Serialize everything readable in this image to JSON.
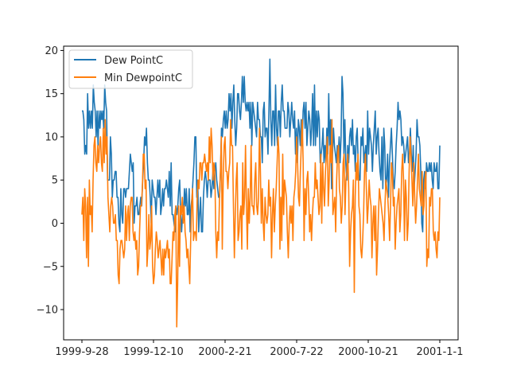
{
  "chart_data": {
    "type": "line",
    "title": "",
    "xlabel": "",
    "ylabel": "",
    "x_tick_labels": [
      "1999-9-28",
      "1999-12-10",
      "2000-2-21",
      "2000-7-22",
      "2000-10-21",
      "2001-1-1"
    ],
    "yticks": [
      -10,
      -5,
      0,
      5,
      10,
      15,
      20
    ],
    "ylim": [
      -13.5,
      20.5
    ],
    "grid": false,
    "legend_position": "top-left",
    "series": [
      {
        "name": "Dew PointC",
        "color": "#1f77b4",
        "values": [
          13,
          13,
          12,
          8,
          9,
          8,
          15,
          11,
          13,
          11,
          13,
          11,
          16,
          14,
          13,
          10,
          13,
          9,
          13,
          11,
          13,
          12,
          13,
          11,
          16,
          14,
          13,
          5,
          5,
          5,
          10,
          8,
          3,
          5,
          5,
          6,
          6,
          3,
          3,
          0,
          -1,
          4,
          1,
          0,
          4,
          4,
          3,
          4,
          4,
          4,
          6,
          8,
          7,
          6,
          7,
          0,
          2,
          2,
          3,
          1,
          1,
          2,
          3,
          2,
          5,
          7,
          10,
          9,
          11,
          7,
          5,
          5,
          3,
          0,
          5,
          4,
          3,
          3,
          1,
          3,
          5,
          3,
          5,
          1,
          2,
          4,
          2,
          4,
          4,
          5,
          4,
          3,
          6,
          2,
          7,
          1,
          1,
          0,
          -1,
          2,
          1,
          2,
          4,
          5,
          1,
          -1,
          1,
          1,
          4,
          2,
          4,
          1,
          1,
          4,
          -1,
          2,
          3,
          5,
          7,
          10,
          10,
          3,
          5,
          -1,
          1,
          3,
          -1,
          -1,
          3,
          5,
          6,
          5,
          3,
          5,
          5,
          5,
          3,
          4,
          6,
          4,
          6,
          7,
          5,
          4,
          3,
          3,
          6,
          11,
          10,
          12,
          13,
          11,
          13,
          11,
          12,
          15,
          13,
          15,
          11,
          14,
          16,
          12,
          9,
          11,
          15,
          15,
          13,
          12,
          14,
          17,
          14,
          17,
          14,
          13,
          14,
          13,
          14,
          11,
          14,
          9,
          14,
          13,
          12,
          11,
          10,
          14,
          12,
          12,
          10,
          10,
          7,
          13,
          14,
          10,
          11,
          11,
          8,
          13,
          19,
          12,
          9,
          13,
          13,
          9,
          16,
          11,
          9,
          13,
          13,
          10,
          14,
          16,
          13,
          13,
          11,
          11,
          11,
          14,
          13,
          10,
          12,
          14,
          12,
          11,
          13,
          8,
          11,
          7,
          12,
          11,
          9,
          12,
          9,
          13,
          14,
          11,
          14,
          9,
          11,
          13,
          12,
          9,
          11,
          15,
          9,
          16,
          9,
          13,
          10,
          13,
          12,
          7,
          8,
          9,
          11,
          7,
          9,
          7,
          11,
          8,
          15,
          9,
          12,
          4,
          8,
          11,
          9,
          8,
          7,
          9,
          8,
          10,
          7,
          10,
          17,
          15,
          8,
          12,
          7,
          5,
          9,
          7,
          10,
          11,
          9,
          12,
          8,
          9,
          6,
          10,
          11,
          7,
          5,
          5,
          10,
          9,
          11,
          7,
          8,
          9,
          6,
          13,
          8,
          11,
          10,
          9,
          6,
          9,
          11,
          13,
          8,
          10,
          11,
          8,
          6,
          5,
          10,
          4,
          11,
          9,
          4,
          5,
          8,
          3,
          7,
          9,
          11,
          8,
          5,
          4,
          6,
          9,
          11,
          14,
          12,
          13,
          12,
          9,
          10,
          9,
          7,
          8,
          9,
          10,
          7,
          8,
          11,
          8,
          6,
          9,
          4,
          6,
          8,
          12,
          10,
          10,
          9,
          6,
          0,
          -1,
          5,
          6,
          4,
          7,
          6,
          6,
          7,
          6,
          7,
          5,
          4,
          7,
          6,
          6,
          7,
          4,
          4,
          9
        ]
      },
      {
        "name": "Min DewpointC",
        "color": "#ff7f0e",
        "values": [
          1,
          3,
          -2,
          4,
          2,
          -4,
          3,
          -5,
          5,
          1,
          2,
          -1,
          5,
          9,
          10,
          7,
          6,
          9,
          7,
          9,
          10,
          7,
          6,
          11,
          7,
          12,
          8,
          10,
          3,
          1,
          -1,
          2,
          3,
          2,
          0,
          0,
          1,
          -2,
          -2,
          -6,
          -7,
          -3,
          -2,
          -2,
          -3,
          -4,
          -3,
          2,
          -2,
          1,
          2,
          -2,
          2,
          3,
          3,
          -1,
          -2,
          -1,
          -3,
          -2,
          -6,
          -5,
          -1,
          2,
          2,
          4,
          8,
          8,
          4,
          5,
          -5,
          -3,
          1,
          -3,
          -2,
          2,
          -5,
          -7,
          -6,
          -3,
          -1,
          -2,
          -4,
          -3,
          -2,
          -4,
          -6,
          -3,
          -6,
          -3,
          -4,
          -3,
          -2,
          -4,
          -3,
          -7,
          -7,
          -4,
          -1,
          -2,
          1,
          2,
          -12,
          -7,
          2,
          -5,
          2,
          1,
          3,
          0,
          2,
          -1,
          -2,
          -4,
          -3,
          -5,
          -7,
          -2,
          2,
          4,
          -2,
          -1,
          -1,
          -2,
          3,
          5,
          4,
          7,
          7,
          5,
          7,
          7,
          8,
          7,
          6,
          7,
          5,
          10,
          7,
          11,
          9,
          5,
          7,
          6,
          -1,
          -4,
          -1,
          -2,
          3,
          6,
          10,
          -3,
          5,
          9,
          10,
          6,
          6,
          4,
          6,
          7,
          12,
          9,
          9,
          2,
          -4,
          1,
          5,
          7,
          -2,
          -1,
          1,
          2,
          -3,
          7,
          1,
          3,
          9,
          2,
          -3,
          4,
          0,
          3,
          9,
          2,
          2,
          1,
          5,
          7,
          2,
          1,
          3,
          11,
          6,
          0,
          4,
          0,
          -2,
          3,
          1,
          0,
          1,
          5,
          2,
          3,
          -4,
          1,
          4,
          -1,
          2,
          4,
          7,
          10,
          8,
          -3,
          3,
          -2,
          8,
          1,
          5,
          4,
          3,
          -1,
          -4,
          0,
          2,
          0,
          2,
          -2,
          3,
          4,
          6,
          10,
          7,
          3,
          2,
          6,
          9,
          12,
          7,
          -2,
          4,
          1,
          5,
          6,
          3,
          -1,
          1,
          -2,
          1,
          3,
          3,
          7,
          4,
          5,
          3,
          1,
          2,
          8,
          0,
          7,
          4,
          2,
          6,
          8,
          10,
          2,
          5,
          9,
          7,
          12,
          1,
          2,
          3,
          -1,
          5,
          8,
          9,
          4,
          3,
          0,
          2,
          7,
          8,
          1,
          5,
          6,
          8,
          4,
          -5,
          -1,
          1,
          2,
          5,
          -8,
          3,
          7,
          5,
          8,
          2,
          1,
          -3,
          -4,
          -2,
          1,
          6,
          8,
          4,
          0,
          2,
          5,
          3,
          2,
          -4,
          0,
          2,
          -2,
          2,
          -6,
          -3,
          1,
          4,
          3,
          2,
          1,
          0,
          -2,
          2,
          5,
          4,
          3,
          1,
          -2,
          2,
          7,
          6,
          2,
          3,
          -3,
          0,
          2,
          3,
          4,
          -1,
          1,
          6,
          8,
          5,
          -2,
          5,
          3,
          -2,
          0,
          6,
          10,
          8,
          5,
          2,
          7,
          3,
          0,
          2,
          5,
          8,
          4,
          3,
          2,
          6,
          1,
          2,
          5,
          6,
          -5,
          -3,
          -4,
          3,
          2,
          4,
          4,
          -1,
          -2,
          -1,
          -3,
          -4,
          -1,
          -2,
          3
        ]
      }
    ]
  }
}
